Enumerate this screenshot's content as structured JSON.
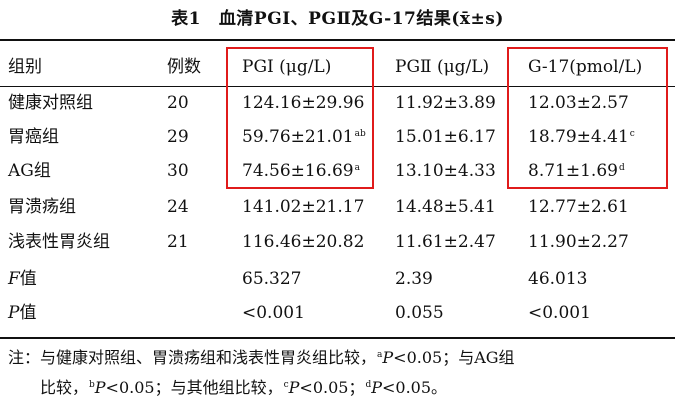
{
  "title": {
    "number": "表1",
    "text": "血清PGⅠ、PGⅡ及G-17结果",
    "stat": "(x̄±s)"
  },
  "table": {
    "headers": [
      "组别",
      "例数",
      "PGⅠ (μg/L)",
      "PGⅡ (μg/L)",
      "G-17(pmol/L)"
    ],
    "rows": [
      {
        "group": "健康对照组",
        "n": "20",
        "pg1": "124.16±29.96",
        "pg1_sup": "",
        "pg2": "11.92±3.89",
        "g17": "12.03±2.57",
        "g17_sup": ""
      },
      {
        "group": "胃癌组",
        "n": "29",
        "pg1": "59.76±21.01",
        "pg1_sup": "ab",
        "pg2": "15.01±6.17",
        "g17": "18.79±4.41",
        "g17_sup": "c"
      },
      {
        "group": "AG组",
        "n": "30",
        "pg1": "74.56±16.69",
        "pg1_sup": "a",
        "pg2": "13.10±4.33",
        "g17": "8.71±1.69",
        "g17_sup": "d"
      },
      {
        "group": "胃溃疡组",
        "n": "24",
        "pg1": "141.02±21.17",
        "pg1_sup": "",
        "pg2": "14.48±5.41",
        "g17": "12.77±2.61",
        "g17_sup": ""
      },
      {
        "group": "浅表性胃炎组",
        "n": "21",
        "pg1": "116.46±20.82",
        "pg1_sup": "",
        "pg2": "11.61±2.47",
        "g17": "11.90±2.27",
        "g17_sup": ""
      }
    ],
    "stats": [
      {
        "label_italic": "F",
        "label_rest": "值",
        "pg1": "65.327",
        "pg2": "2.39",
        "g17": "46.013"
      },
      {
        "label_italic": "P",
        "label_rest": "值",
        "pg1": "<0.001",
        "pg2": "0.055",
        "g17": "<0.001"
      }
    ]
  },
  "note": {
    "line1_prefix": "注：与健康对照组、胃溃疡组和浅表性胃炎组比较，",
    "line1_a_mark": "a",
    "line1_a_p": "P",
    "line1_a_rest": "<0.05；与AG组",
    "line2_prefix": "比较，",
    "line2_b_mark": "b",
    "line2_b_p": "P",
    "line2_b_rest": "<0.05；与其他组比较，",
    "line2_c_mark": "c",
    "line2_c_p": "P",
    "line2_c_rest": "<0.05；",
    "line2_d_mark": "d",
    "line2_d_p": "P",
    "line2_d_rest": "<0.05。"
  },
  "highlight_color": "#e01b1b"
}
